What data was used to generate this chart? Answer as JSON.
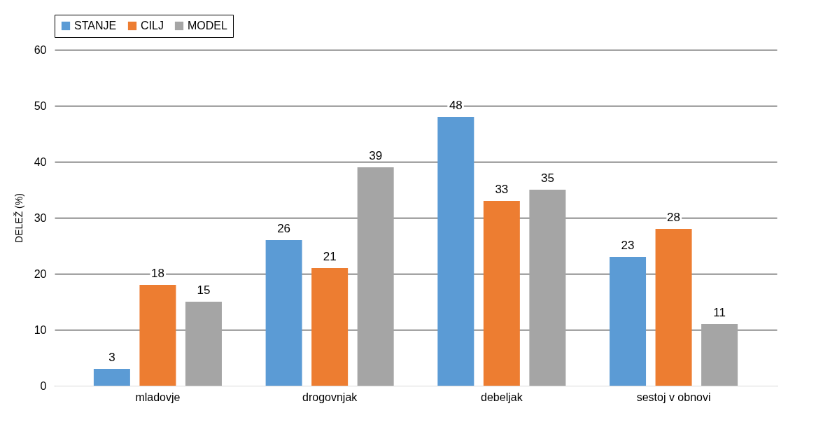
{
  "chart_data": {
    "type": "bar",
    "ylabel": "DELEŽ (%)",
    "categories": [
      "mladovje",
      "drogovnjak",
      "debeljak",
      "sestoj v obnovi"
    ],
    "series": [
      {
        "name": "STANJE",
        "color": "#5b9bd5",
        "values": [
          3,
          26,
          48,
          23
        ]
      },
      {
        "name": "CILJ",
        "color": "#ed7d31",
        "values": [
          18,
          21,
          33,
          28
        ]
      },
      {
        "name": "MODEL",
        "color": "#a5a5a5",
        "values": [
          15,
          39,
          35,
          11
        ]
      }
    ],
    "ylim": [
      0,
      60
    ],
    "yticks": [
      0,
      10,
      20,
      30,
      40,
      50,
      60
    ],
    "grid": "y",
    "legend": "top",
    "data_labels": true
  }
}
